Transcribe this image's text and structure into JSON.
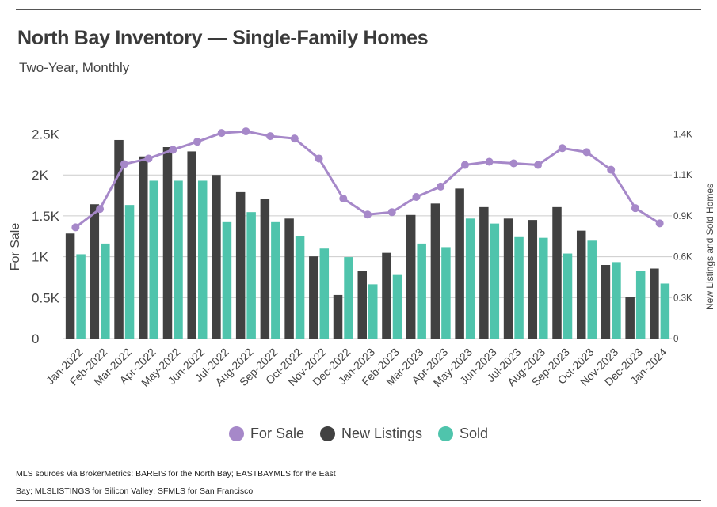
{
  "header": {
    "title": "North Bay Inventory — Single-Family Homes",
    "subtitle": "Two-Year, Monthly"
  },
  "footer": {
    "source": "MLS sources via BrokerMetrics: BAREIS for the North Bay; EASTBAYMLS for the East Bay; MLSLISTINGS for Silicon Valley; SFMLS for San Francisco"
  },
  "colors": {
    "for_sale": "#a688c9",
    "new_listings": "#414141",
    "sold": "#4fc4ac",
    "grid": "#cccccc"
  },
  "chart_data": {
    "type": "bar",
    "categories": [
      "Jan-2022",
      "Feb-2022",
      "Mar-2022",
      "Apr-2022",
      "May-2022",
      "Jun-2022",
      "Jul-2022",
      "Aug-2022",
      "Sep-2022",
      "Oct-2022",
      "Nov-2022",
      "Dec-2022",
      "Jan-2023",
      "Feb-2023",
      "Mar-2023",
      "Apr-2023",
      "May-2023",
      "Jun-2023",
      "Jul-2023",
      "Aug-2023",
      "Sep-2023",
      "Oct-2023",
      "Nov-2023",
      "Dec-2023",
      "Jan-2024"
    ],
    "ylabel_left": "For Sale",
    "ylabel_right": "New Listings and Sold Homes",
    "y_left_ticks": [
      "0",
      "0.5K",
      "1K",
      "1.5K",
      "2K",
      "2.5K"
    ],
    "y_left_range": [
      0,
      2650
    ],
    "y_right_ticks": [
      "0",
      "0.3K",
      "0.6K",
      "0.9K",
      "1.1K",
      "1.4K"
    ],
    "y_right_range": [
      0,
      1484
    ],
    "grid": true,
    "legend_position": "bottom",
    "series": [
      {
        "name": "For Sale",
        "type": "line",
        "axis": "left",
        "values": [
          1390,
          1620,
          2180,
          2250,
          2360,
          2460,
          2570,
          2590,
          2530,
          2500,
          2250,
          1750,
          1550,
          1580,
          1770,
          1900,
          2170,
          2210,
          2190,
          2170,
          2380,
          2330,
          2110,
          1630,
          1440
        ]
      },
      {
        "name": "New Listings",
        "type": "bar",
        "axis": "right",
        "values": [
          735,
          940,
          1390,
          1275,
          1340,
          1310,
          1145,
          1025,
          980,
          840,
          575,
          305,
          475,
          600,
          865,
          945,
          1050,
          920,
          840,
          830,
          920,
          755,
          515,
          290,
          490
        ]
      },
      {
        "name": "Sold",
        "type": "bar",
        "axis": "right",
        "values": [
          590,
          665,
          935,
          1105,
          1105,
          1105,
          815,
          885,
          815,
          715,
          630,
          570,
          380,
          445,
          665,
          640,
          840,
          805,
          710,
          705,
          595,
          685,
          535,
          475,
          385
        ]
      }
    ]
  }
}
